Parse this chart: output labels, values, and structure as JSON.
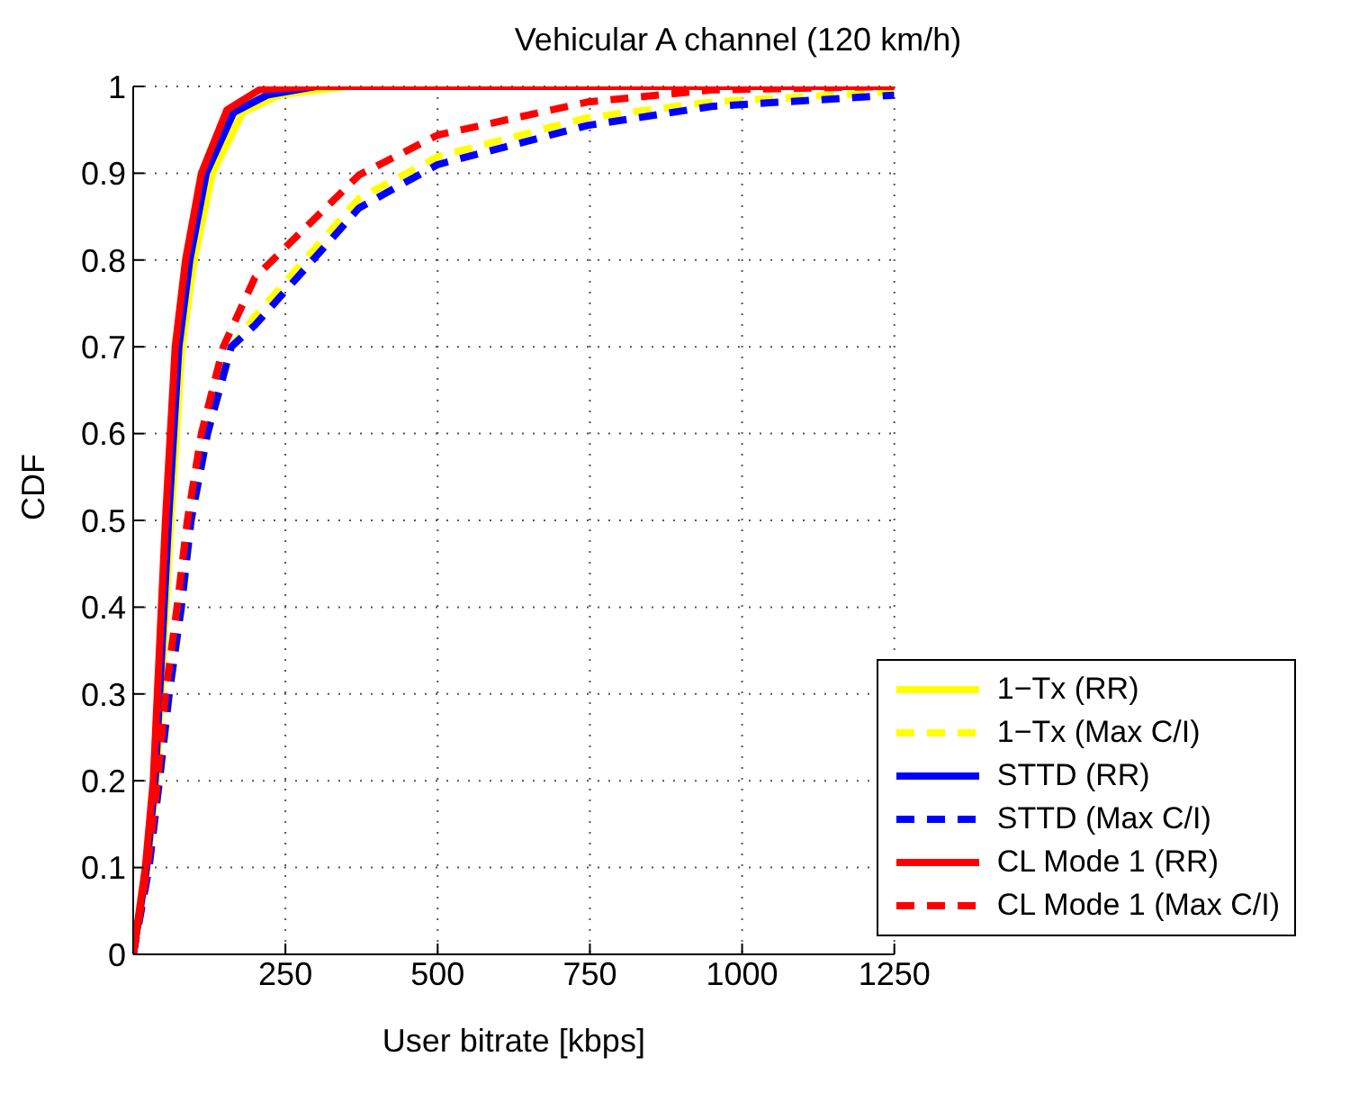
{
  "chart_data": {
    "type": "line",
    "title": "Vehicular A channel (120 km/h)",
    "xlabel": "User bitrate [kbps]",
    "ylabel": "CDF",
    "xlim": [
      0,
      1250
    ],
    "xticks": [
      250,
      500,
      750,
      1000,
      1250
    ],
    "ylim": [
      0,
      1
    ],
    "yticks": [
      0,
      0.1,
      0.2,
      0.3,
      0.4,
      0.5,
      0.6,
      0.7,
      0.8,
      0.9,
      1
    ],
    "grid": true,
    "legend": "bottom right",
    "marker": "none",
    "series": [
      {
        "name": "1−Tx (RR)",
        "color": "#ffff00",
        "line_style": "solid",
        "x": [
          0,
          23,
          38,
          62,
          80,
          100,
          130,
          180,
          240,
          350,
          1250
        ],
        "values": [
          0,
          0.1,
          0.2,
          0.5,
          0.7,
          0.8,
          0.9,
          0.97,
          0.99,
          1,
          1
        ]
      },
      {
        "name": "1−Tx (Max C/I)",
        "color": "#ffff00",
        "line_style": "dashed",
        "x": [
          0,
          25,
          44,
          60,
          80,
          96,
          123,
          162,
          200,
          371,
          500,
          746,
          950,
          1250
        ],
        "values": [
          0,
          0.1,
          0.2,
          0.3,
          0.4,
          0.5,
          0.6,
          0.7,
          0.735,
          0.871,
          0.919,
          0.964,
          0.982,
          0.994
        ]
      },
      {
        "name": "STTD (RR)",
        "color": "#0000ff",
        "line_style": "solid",
        "x": [
          0,
          22,
          36,
          58,
          75,
          93,
          120,
          165,
          220,
          300,
          1250
        ],
        "values": [
          0,
          0.1,
          0.2,
          0.5,
          0.7,
          0.8,
          0.9,
          0.97,
          0.99,
          1,
          1
        ]
      },
      {
        "name": "STTD (Max C/I)",
        "color": "#0000ff",
        "line_style": "dashed",
        "x": [
          0,
          26,
          43,
          59,
          79,
          95,
          122,
          161,
          200,
          371,
          500,
          746,
          950,
          1250
        ],
        "values": [
          0,
          0.1,
          0.2,
          0.3,
          0.4,
          0.5,
          0.6,
          0.7,
          0.725,
          0.86,
          0.91,
          0.955,
          0.977,
          0.99
        ]
      },
      {
        "name": "CL Mode 1 (RR)",
        "color": "#ff0000",
        "line_style": "solid",
        "x": [
          0,
          20,
          33,
          53,
          69,
          86,
          112,
          154,
          207,
          300,
          1250
        ],
        "values": [
          0,
          0.1,
          0.2,
          0.5,
          0.7,
          0.8,
          0.9,
          0.973,
          0.996,
          1,
          1
        ]
      },
      {
        "name": "CL Mode 1 (Max C/I)",
        "color": "#ff0000",
        "line_style": "dashed",
        "x": [
          0,
          23,
          40,
          53,
          72,
          89,
          112,
          148,
          200,
          371,
          500,
          746,
          950,
          1250
        ],
        "values": [
          0,
          0.1,
          0.2,
          0.3,
          0.4,
          0.5,
          0.6,
          0.7,
          0.78,
          0.898,
          0.944,
          0.982,
          0.996,
          1
        ]
      }
    ]
  }
}
